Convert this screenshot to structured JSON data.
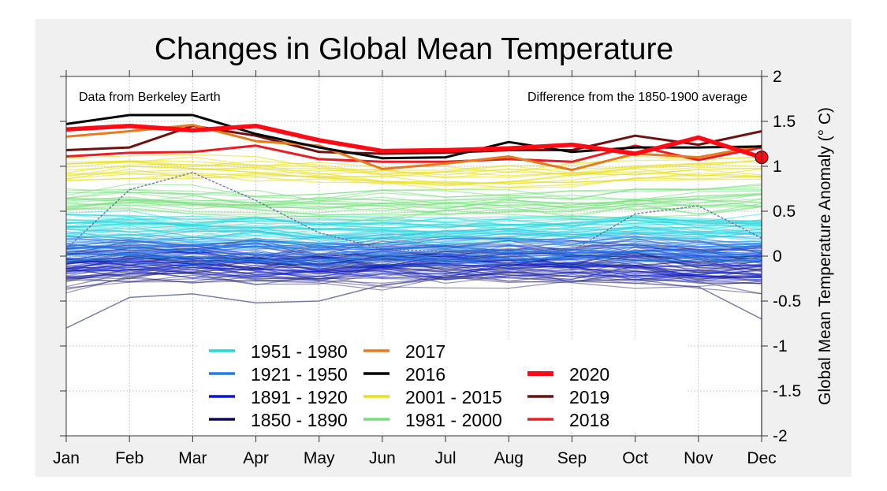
{
  "chart_data": {
    "type": "line",
    "title": "Changes in Global Mean Temperature",
    "xlabel": "",
    "ylabel": "Global Mean Temperature Anomaly (° C)",
    "x": [
      "Jan",
      "Feb",
      "Mar",
      "Apr",
      "May",
      "Jun",
      "Jul",
      "Aug",
      "Sep",
      "Oct",
      "Nov",
      "Dec"
    ],
    "ylim": [
      -2,
      2
    ],
    "yticks": [
      2,
      1.5,
      1,
      0.5,
      0,
      -0.5,
      -1,
      -1.5,
      -2
    ],
    "ytick_labels": [
      "2",
      "1.5",
      "1",
      "0.5",
      "0",
      "-0.5",
      "-1",
      "-1.5",
      "-2"
    ],
    "y_axis_side": "right",
    "grid": true,
    "annotations": {
      "top_left": "Data from Berkeley Earth",
      "top_right": "Difference from the 1850-1900 average"
    },
    "legend_placement": "bottom-center",
    "legend": [
      {
        "label": "1951 - 1980",
        "color": "#22d8dc",
        "column": 0
      },
      {
        "label": "1921 - 1950",
        "color": "#1a7fe8",
        "column": 0
      },
      {
        "label": "1891 - 1920",
        "color": "#0a14d8",
        "column": 0
      },
      {
        "label": "1850 - 1890",
        "color": "#0a0a5c",
        "column": 0
      },
      {
        "label": "2017",
        "color": "#e87a1e",
        "column": 1
      },
      {
        "label": "2016",
        "color": "#000000",
        "column": 1
      },
      {
        "label": "2001 - 2015",
        "color": "#e6e01a",
        "column": 1
      },
      {
        "label": "1981 - 2000",
        "color": "#74e07a",
        "column": 1
      },
      {
        "label": "2020",
        "color": "#ff0a14",
        "column": 2,
        "row": 1
      },
      {
        "label": "2019",
        "color": "#6e1010",
        "column": 2,
        "row": 2
      },
      {
        "label": "2018",
        "color": "#e81e24",
        "column": 2,
        "row": 3
      }
    ],
    "background_groups": [
      {
        "name": "1850 - 1890",
        "years": [
          1850,
          1890
        ],
        "color": "#1a1a6e",
        "center": [
          -0.12,
          -0.1,
          -0.09,
          -0.1,
          -0.11,
          -0.1,
          -0.09,
          -0.08,
          -0.1,
          -0.08,
          -0.12,
          -0.14
        ],
        "spread": 0.22,
        "opacity": 0.45
      },
      {
        "name": "1891 - 1920",
        "years": [
          1891,
          1920
        ],
        "color": "#1020d8",
        "center": [
          -0.06,
          -0.05,
          -0.04,
          -0.06,
          -0.08,
          -0.07,
          -0.06,
          -0.05,
          -0.07,
          -0.06,
          -0.09,
          -0.08
        ],
        "spread": 0.18,
        "opacity": 0.45
      },
      {
        "name": "1921 - 1950",
        "years": [
          1921,
          1950
        ],
        "color": "#1a7fe8",
        "center": [
          0.12,
          0.11,
          0.1,
          0.09,
          0.08,
          0.1,
          0.09,
          0.1,
          0.1,
          0.13,
          0.1,
          0.11
        ],
        "spread": 0.15,
        "opacity": 0.45
      },
      {
        "name": "1951 - 1980",
        "years": [
          1951,
          1980
        ],
        "color": "#22d8dc",
        "center": [
          0.32,
          0.33,
          0.3,
          0.3,
          0.28,
          0.29,
          0.28,
          0.29,
          0.3,
          0.33,
          0.3,
          0.31
        ],
        "spread": 0.13,
        "opacity": 0.5
      },
      {
        "name": "1981 - 2000",
        "years": [
          1981,
          2000
        ],
        "color": "#74e07a",
        "center": [
          0.62,
          0.65,
          0.62,
          0.6,
          0.58,
          0.58,
          0.59,
          0.6,
          0.58,
          0.62,
          0.62,
          0.66
        ],
        "spread": 0.14,
        "opacity": 0.55
      },
      {
        "name": "2001 - 2015",
        "years": [
          2001,
          2015
        ],
        "color": "#e6e01a",
        "center": [
          0.96,
          0.98,
          0.97,
          0.97,
          0.92,
          0.9,
          0.88,
          0.9,
          0.9,
          0.95,
          0.96,
          0.98
        ],
        "spread": 0.12,
        "opacity": 0.6
      }
    ],
    "special_series": [
      {
        "name": "outlier-dashed",
        "color": "#5a5a9a",
        "dashed": true,
        "values": [
          0.08,
          0.74,
          0.93,
          0.62,
          0.26,
          0.08,
          0.05,
          0.03,
          0.06,
          0.47,
          0.56,
          0.2
        ]
      },
      {
        "name": "outlier-low",
        "color": "#5a5a9a",
        "dashed": false,
        "values": [
          -0.8,
          -0.46,
          -0.42,
          -0.52,
          -0.5,
          -0.32,
          -0.25,
          -0.24,
          -0.28,
          -0.3,
          -0.34,
          -0.7
        ]
      }
    ],
    "series": [
      {
        "name": "2018",
        "color": "#e81e24",
        "width": 3,
        "values": [
          1.11,
          1.15,
          1.16,
          1.23,
          1.08,
          1.05,
          1.05,
          1.08,
          1.05,
          1.23,
          1.07,
          1.21
        ]
      },
      {
        "name": "2019",
        "color": "#6e1010",
        "width": 3,
        "values": [
          1.18,
          1.21,
          1.45,
          1.34,
          1.16,
          1.14,
          1.15,
          1.18,
          1.18,
          1.34,
          1.24,
          1.39
        ]
      },
      {
        "name": "2017",
        "color": "#e87a1e",
        "width": 3,
        "values": [
          1.33,
          1.39,
          1.46,
          1.28,
          1.23,
          0.97,
          1.03,
          1.11,
          0.96,
          1.14,
          1.1,
          1.23
        ]
      },
      {
        "name": "2016",
        "color": "#000000",
        "width": 3,
        "values": [
          1.47,
          1.57,
          1.57,
          1.36,
          1.21,
          1.09,
          1.1,
          1.27,
          1.16,
          1.21,
          1.21,
          1.22
        ]
      },
      {
        "name": "2020",
        "color": "#ff0a14",
        "width": 5.5,
        "values": [
          1.41,
          1.45,
          1.4,
          1.45,
          1.29,
          1.17,
          1.18,
          1.2,
          1.24,
          1.14,
          1.32,
          1.1
        ]
      }
    ],
    "highlight_point": {
      "series": "2020",
      "month": "Dec",
      "value": 1.1,
      "color": "#ff0a14"
    }
  }
}
